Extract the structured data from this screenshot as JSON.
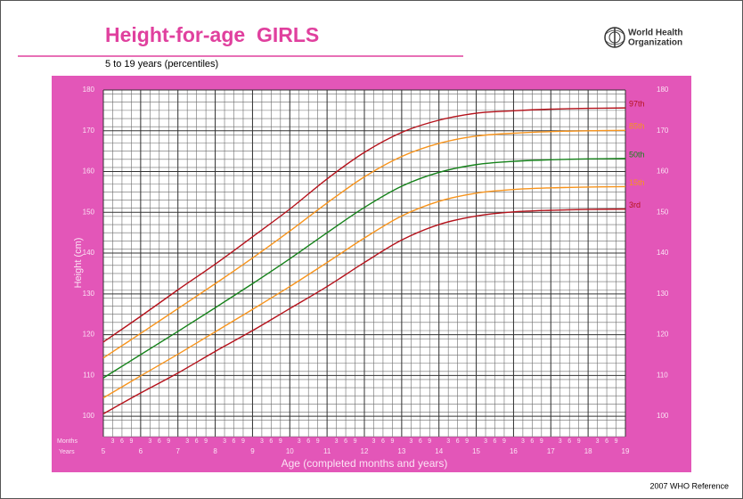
{
  "chart_data": {
    "type": "line",
    "title": "Height-for-age  GIRLS",
    "subtitle": "5 to 19 years (percentiles)",
    "organization": "World Health Organization",
    "organization_lines": [
      "World Health",
      "Organization"
    ],
    "y_label": "Height (cm)",
    "x_label": "Age (completed months and years)",
    "row_labels": {
      "months": "Months",
      "years": "Years"
    },
    "month_ticks": [
      3,
      6,
      9
    ],
    "footer": "2007 WHO Reference",
    "x": [
      5,
      6,
      7,
      8,
      9,
      10,
      11,
      12,
      13,
      14,
      15,
      16,
      17,
      18,
      19
    ],
    "xlim": [
      5,
      19
    ],
    "xticks": [
      5,
      6,
      7,
      8,
      9,
      10,
      11,
      12,
      13,
      14,
      15,
      16,
      17,
      18,
      19
    ],
    "ylim": [
      95,
      180
    ],
    "yticks": [
      100,
      110,
      120,
      130,
      140,
      150,
      160,
      170,
      180
    ],
    "grid": true,
    "series": [
      {
        "name": "97th",
        "color": "#b5121b",
        "values": [
          118.2,
          124.5,
          131.0,
          137.3,
          144.0,
          150.8,
          158.2,
          164.7,
          169.6,
          172.6,
          174.3,
          174.9,
          175.3,
          175.5,
          175.6
        ]
      },
      {
        "name": "85th",
        "color": "#f7941d",
        "values": [
          114.3,
          120.3,
          126.4,
          132.5,
          138.8,
          145.4,
          152.3,
          158.7,
          163.7,
          166.9,
          168.7,
          169.4,
          169.8,
          170.0,
          170.1
        ]
      },
      {
        "name": "50th",
        "color": "#15821a",
        "values": [
          109.4,
          115.1,
          120.8,
          126.6,
          132.5,
          138.6,
          145.0,
          151.2,
          156.4,
          159.8,
          161.7,
          162.5,
          162.9,
          163.1,
          163.2
        ]
      },
      {
        "name": "15th",
        "color": "#f7941d",
        "values": [
          104.5,
          109.9,
          115.2,
          120.7,
          126.2,
          131.8,
          137.7,
          143.7,
          149.1,
          152.7,
          154.7,
          155.6,
          156.0,
          156.2,
          156.3
        ]
      },
      {
        "name": "3rd",
        "color": "#b5121b",
        "values": [
          100.6,
          105.7,
          110.6,
          115.9,
          121.0,
          126.4,
          131.8,
          137.7,
          143.2,
          147.0,
          149.1,
          150.1,
          150.5,
          150.7,
          150.8
        ]
      }
    ]
  }
}
